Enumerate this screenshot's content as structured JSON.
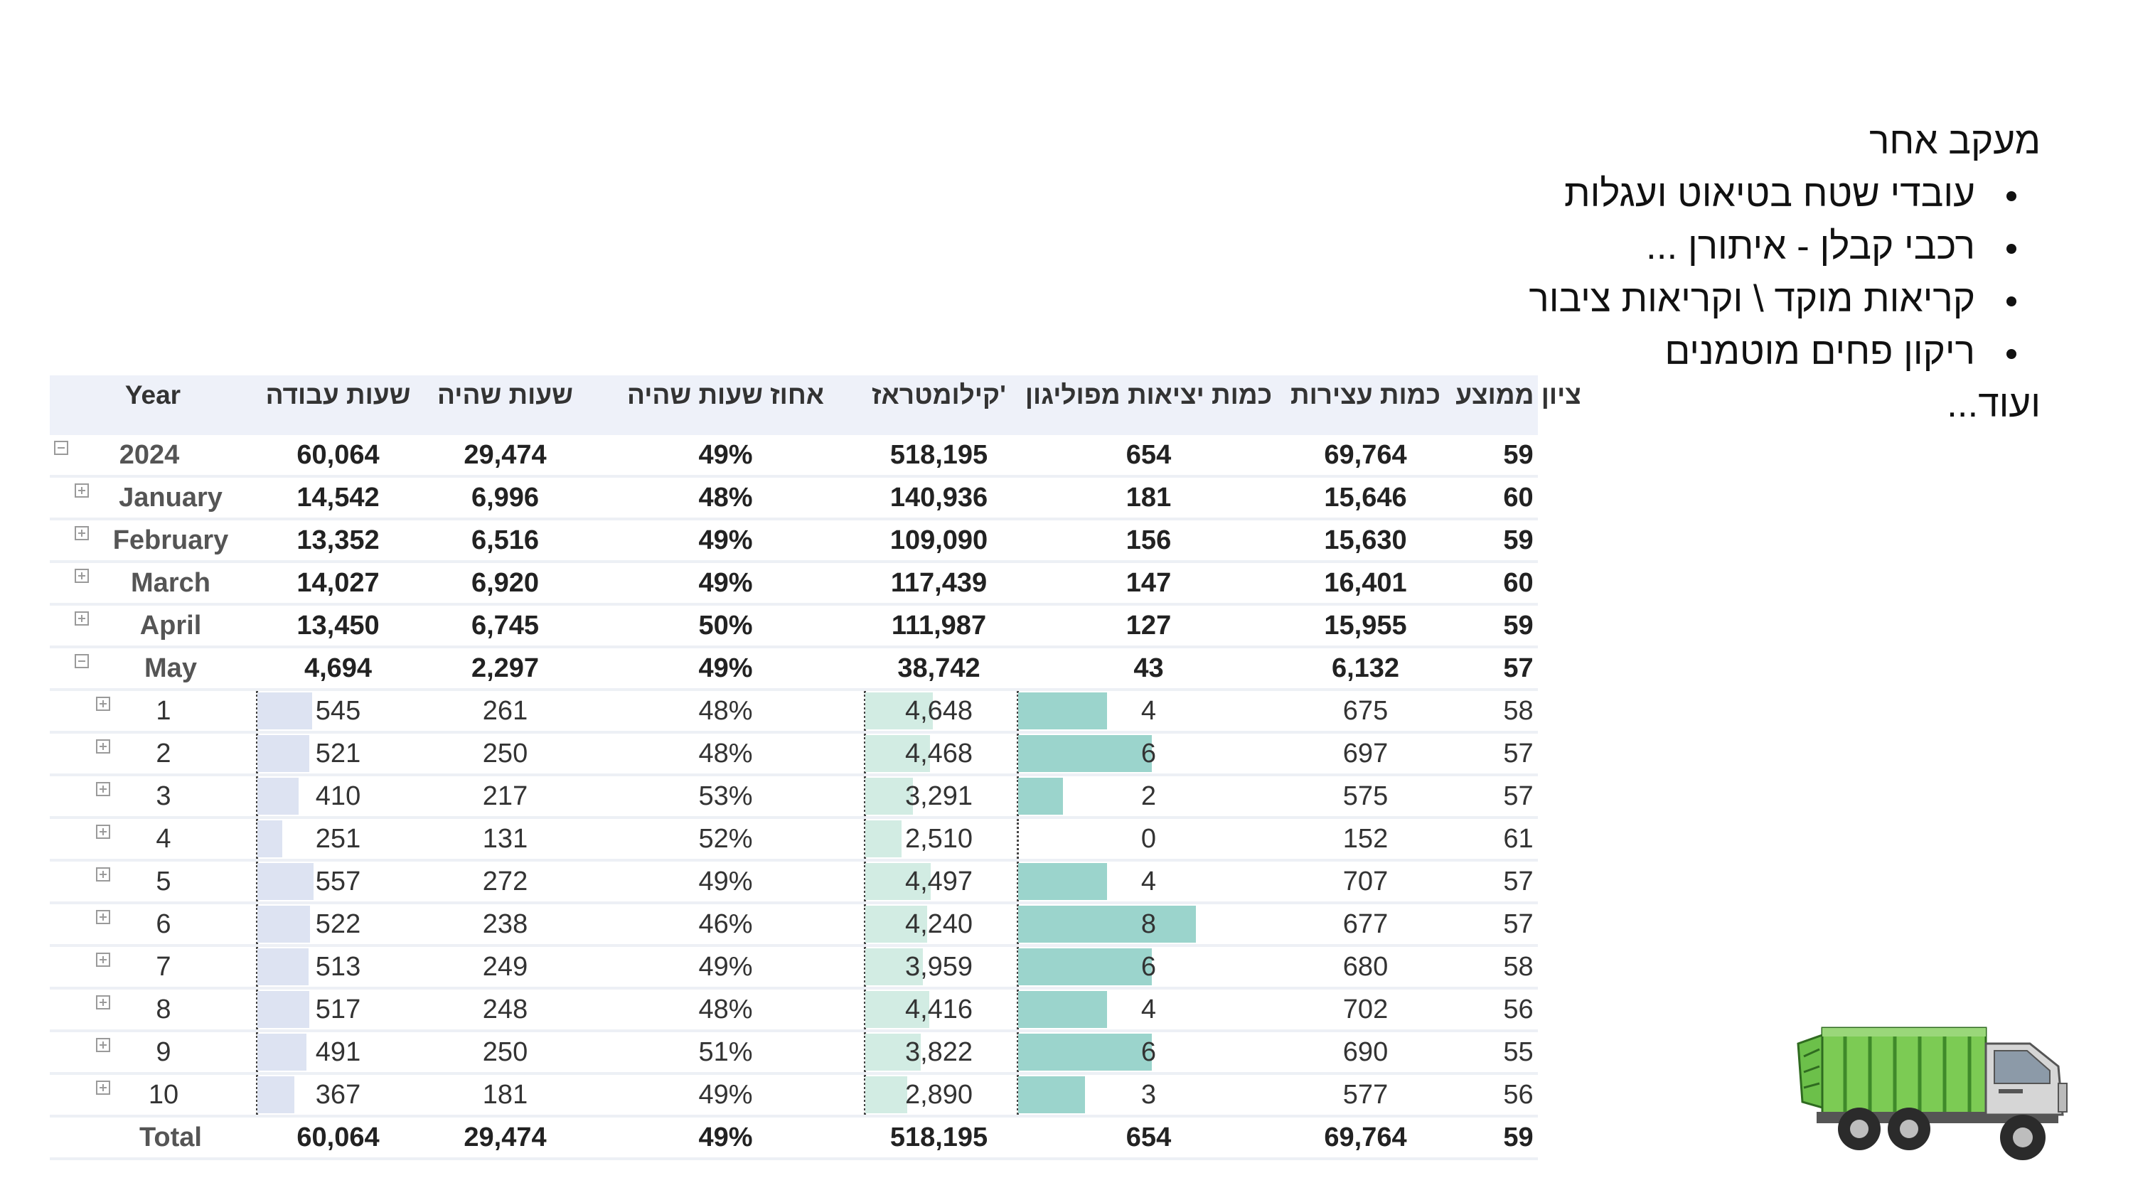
{
  "notes": {
    "title": "מעקב אחר",
    "bullets": [
      "עובדי שטח בטיאוט ועגלות",
      "רכבי קבלן - איתורן ...",
      "קריאות מוקד \\ וקריאות ציבור",
      "ריקון פחים מוטמנים"
    ],
    "footer": "ועוד..."
  },
  "table": {
    "headers": {
      "year": "Year",
      "work_hours": "שעות עבודה",
      "idle_hours": "שעות שהיה",
      "idle_pct": "אחוז שעות שהיה",
      "km": "קילומטראז'",
      "polygon_exits": "כמות יציאות מפוליגון",
      "stops": "כמות עצירות",
      "avg_score": "ציון ממוצע"
    },
    "rows": [
      {
        "label": "2024",
        "work": "60,064",
        "idle": "29,474",
        "pct": "49%",
        "km": "518,195",
        "exits": "654",
        "stops": "69,764",
        "score": "59"
      },
      {
        "label": "January",
        "work": "14,542",
        "idle": "6,996",
        "pct": "48%",
        "km": "140,936",
        "exits": "181",
        "stops": "15,646",
        "score": "60"
      },
      {
        "label": "February",
        "work": "13,352",
        "idle": "6,516",
        "pct": "49%",
        "km": "109,090",
        "exits": "156",
        "stops": "15,630",
        "score": "59"
      },
      {
        "label": "March",
        "work": "14,027",
        "idle": "6,920",
        "pct": "49%",
        "km": "117,439",
        "exits": "147",
        "stops": "16,401",
        "score": "60"
      },
      {
        "label": "April",
        "work": "13,450",
        "idle": "6,745",
        "pct": "50%",
        "km": "111,987",
        "exits": "127",
        "stops": "15,955",
        "score": "59"
      },
      {
        "label": "May",
        "work": "4,694",
        "idle": "2,297",
        "pct": "49%",
        "km": "38,742",
        "exits": "43",
        "stops": "6,132",
        "score": "57"
      }
    ],
    "days": [
      {
        "label": "1",
        "work": "545",
        "idle": "261",
        "pct": "48%",
        "km": "4,648",
        "exits": "4",
        "stops": "675",
        "score": "58"
      },
      {
        "label": "2",
        "work": "521",
        "idle": "250",
        "pct": "48%",
        "km": "4,468",
        "exits": "6",
        "stops": "697",
        "score": "57"
      },
      {
        "label": "3",
        "work": "410",
        "idle": "217",
        "pct": "53%",
        "km": "3,291",
        "exits": "2",
        "stops": "575",
        "score": "57"
      },
      {
        "label": "4",
        "work": "251",
        "idle": "131",
        "pct": "52%",
        "km": "2,510",
        "exits": "0",
        "stops": "152",
        "score": "61"
      },
      {
        "label": "5",
        "work": "557",
        "idle": "272",
        "pct": "49%",
        "km": "4,497",
        "exits": "4",
        "stops": "707",
        "score": "57"
      },
      {
        "label": "6",
        "work": "522",
        "idle": "238",
        "pct": "46%",
        "km": "4,240",
        "exits": "8",
        "stops": "677",
        "score": "57"
      },
      {
        "label": "7",
        "work": "513",
        "idle": "249",
        "pct": "49%",
        "km": "3,959",
        "exits": "6",
        "stops": "680",
        "score": "58"
      },
      {
        "label": "8",
        "work": "517",
        "idle": "248",
        "pct": "48%",
        "km": "4,416",
        "exits": "4",
        "stops": "702",
        "score": "56"
      },
      {
        "label": "9",
        "work": "491",
        "idle": "250",
        "pct": "51%",
        "km": "3,822",
        "exits": "6",
        "stops": "690",
        "score": "55"
      },
      {
        "label": "10",
        "work": "367",
        "idle": "181",
        "pct": "49%",
        "km": "2,890",
        "exits": "3",
        "stops": "577",
        "score": "56"
      }
    ],
    "total": {
      "label": "Total",
      "work": "60,064",
      "idle": "29,474",
      "pct": "49%",
      "km": "518,195",
      "exits": "654",
      "stops": "69,764",
      "score": "59"
    }
  },
  "colors": {
    "work_bar": "#dde3f2",
    "km_bar": "#d2ece3",
    "exits_bar": "#9bd4cc",
    "header_bg": "#eef1f9"
  },
  "icons": {
    "truck": "garbage-truck-icon",
    "collapse": "minus-box-icon",
    "expand": "plus-box-icon"
  }
}
